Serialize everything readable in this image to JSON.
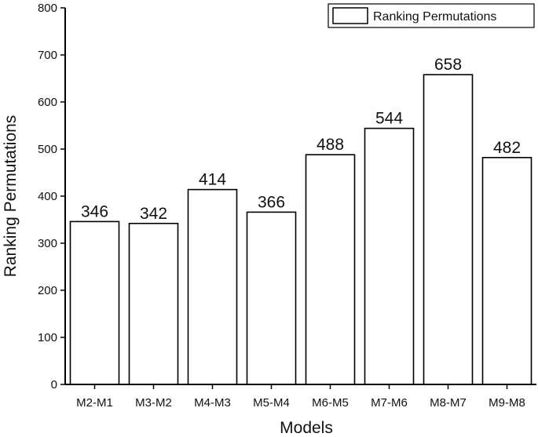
{
  "chart_data": {
    "type": "bar",
    "categories": [
      "M2-M1",
      "M3-M2",
      "M4-M3",
      "M5-M4",
      "M6-M5",
      "M7-M6",
      "M8-M7",
      "M9-M8"
    ],
    "series": [
      {
        "name": "Ranking Permutations",
        "values": [
          346,
          342,
          414,
          366,
          488,
          544,
          658,
          482
        ]
      }
    ],
    "xlabel": "Models",
    "ylabel": "Ranking Permutations",
    "ylim": [
      0,
      800
    ],
    "yticks": [
      0,
      100,
      200,
      300,
      400,
      500,
      600,
      700,
      800
    ],
    "grid": false,
    "legend_position": "top-right",
    "bar_fill": "#ffffff",
    "bar_stroke": "#000000"
  }
}
